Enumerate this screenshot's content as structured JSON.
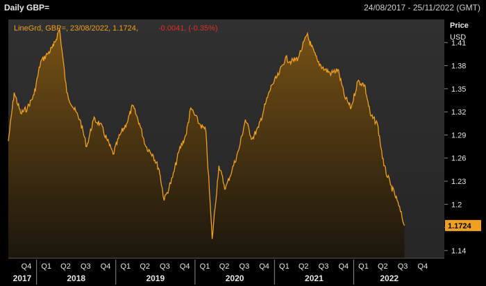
{
  "header": {
    "title": "Daily GBP=",
    "range": "24/08/2017 - 25/11/2022 (GMT)"
  },
  "legend": {
    "series": "LineGrd, GBP=, 23/08/2022, 1.1724,",
    "change": "-0.0041, (-0.35%)"
  },
  "yaxis": {
    "title_line1": "Price",
    "title_line2": "USD",
    "ticks": [
      "1.41",
      "1.38",
      "1.35",
      "1.32",
      "1.29",
      "1.26",
      "1.23",
      "1.2",
      "1.17",
      "1.14"
    ],
    "last_value": "1.1724"
  },
  "xaxis": {
    "quarter_labels": [
      "Q4",
      "Q1",
      "Q2",
      "Q3",
      "Q4",
      "Q1",
      "Q2",
      "Q3",
      "Q4",
      "Q1",
      "Q2",
      "Q3",
      "Q4",
      "Q1",
      "Q2",
      "Q3",
      "Q4",
      "Q1",
      "Q2",
      "Q3",
      "Q4"
    ],
    "year_labels": [
      "2017",
      "2018",
      "2019",
      "2020",
      "2021",
      "2022"
    ]
  },
  "colors": {
    "line": "#f0a020",
    "fill_top": "#7a5414",
    "fill_bottom": "#1a140a",
    "panel_bg": "#2a2a2a",
    "last_badge": "#f0a020",
    "change_red": "#e0302a",
    "legend_text": "#f0a020"
  },
  "chart_data": {
    "type": "area",
    "title": "Daily GBP=",
    "ylabel": "Price USD",
    "ylim": [
      1.13,
      1.44
    ],
    "xlim": [
      "2017-08-24",
      "2022-11-25"
    ],
    "y_ticks": [
      1.14,
      1.17,
      1.2,
      1.23,
      1.26,
      1.29,
      1.32,
      1.35,
      1.38,
      1.41
    ],
    "grid": false,
    "series": [
      {
        "name": "GBP=",
        "x": [
          "2017-08-24",
          "2017-09-20",
          "2017-10-20",
          "2017-11-20",
          "2017-12-20",
          "2018-01-20",
          "2018-02-20",
          "2018-03-20",
          "2018-04-17",
          "2018-05-20",
          "2018-06-20",
          "2018-07-20",
          "2018-08-20",
          "2018-09-20",
          "2018-10-20",
          "2018-11-20",
          "2018-12-20",
          "2019-01-20",
          "2019-02-20",
          "2019-03-20",
          "2019-04-20",
          "2019-05-20",
          "2019-06-20",
          "2019-07-20",
          "2019-08-12",
          "2019-09-20",
          "2019-10-20",
          "2019-11-20",
          "2019-12-13",
          "2020-01-20",
          "2020-02-20",
          "2020-03-20",
          "2020-04-20",
          "2020-05-20",
          "2020-06-20",
          "2020-07-20",
          "2020-08-20",
          "2020-09-20",
          "2020-10-20",
          "2020-11-20",
          "2020-12-20",
          "2021-01-20",
          "2021-02-20",
          "2021-03-20",
          "2021-04-20",
          "2021-05-31",
          "2021-06-20",
          "2021-07-20",
          "2021-08-20",
          "2021-09-20",
          "2021-10-20",
          "2021-11-20",
          "2021-12-20",
          "2022-01-20",
          "2022-02-20",
          "2022-03-20",
          "2022-04-20",
          "2022-05-20",
          "2022-06-20",
          "2022-07-20",
          "2022-08-23"
        ],
        "values": [
          1.282,
          1.345,
          1.318,
          1.325,
          1.342,
          1.385,
          1.395,
          1.405,
          1.428,
          1.345,
          1.325,
          1.31,
          1.275,
          1.31,
          1.305,
          1.285,
          1.265,
          1.29,
          1.305,
          1.328,
          1.305,
          1.275,
          1.265,
          1.245,
          1.205,
          1.235,
          1.27,
          1.29,
          1.325,
          1.305,
          1.295,
          1.155,
          1.25,
          1.22,
          1.245,
          1.27,
          1.31,
          1.285,
          1.3,
          1.33,
          1.355,
          1.368,
          1.39,
          1.385,
          1.39,
          1.42,
          1.405,
          1.385,
          1.375,
          1.37,
          1.375,
          1.34,
          1.325,
          1.36,
          1.355,
          1.315,
          1.305,
          1.25,
          1.225,
          1.205,
          1.1724
        ]
      }
    ]
  }
}
